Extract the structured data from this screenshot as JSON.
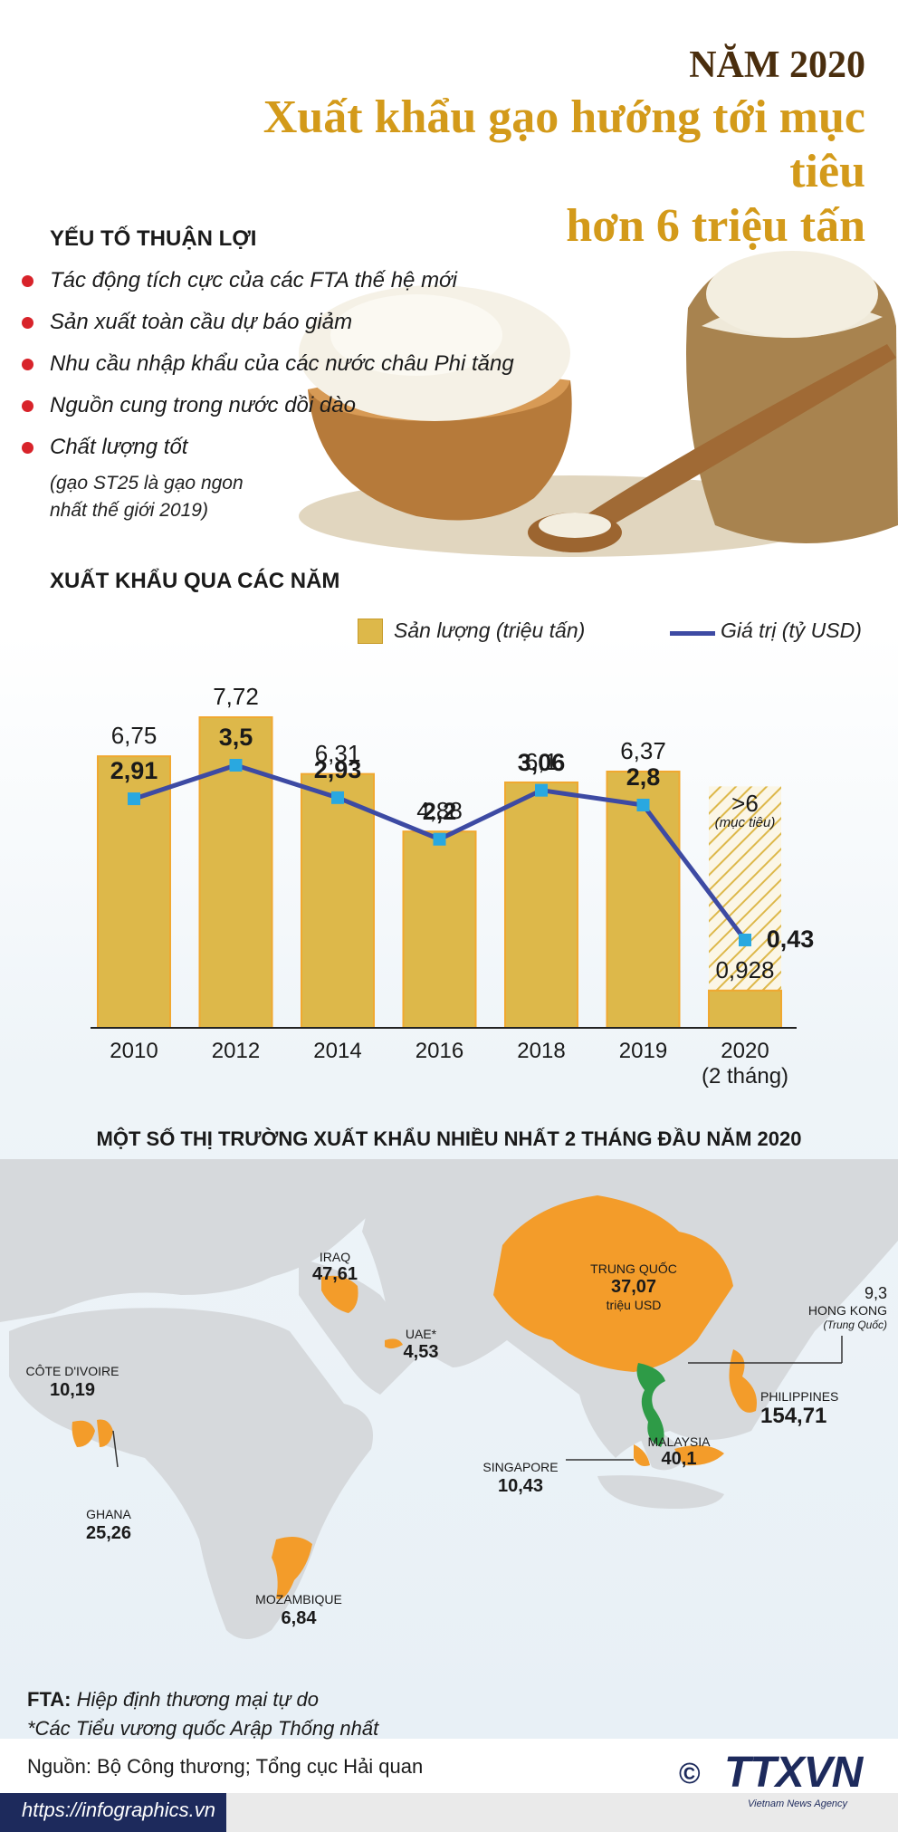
{
  "header": {
    "year": "NĂM 2020",
    "title_line1": "Xuất khẩu gạo hướng tới mục tiêu",
    "title_line2": "hơn 6 triệu tấn"
  },
  "factors": {
    "heading": "YẾU TỐ THUẬN LỢI",
    "items": [
      "Tác động tích cực của các FTA thế hệ mới",
      "Sản xuất toàn cầu dự báo giảm",
      "Nhu cầu nhập khẩu của các nước châu Phi tăng",
      "Nguồn cung trong nước dồi dào",
      "Chất lượng tốt"
    ],
    "note_line1": "(gạo ST25 là gạo ngon",
    "note_line2": "nhất thế giới 2019)"
  },
  "chart_heading": "XUẤT KHẨU QUA CÁC NĂM",
  "chart_data": {
    "type": "bar",
    "categories": [
      "2010",
      "2012",
      "2014",
      "2016",
      "2018",
      "2019",
      "2020"
    ],
    "last_category_sub": "(2 tháng)",
    "series": [
      {
        "name": "Sản lượng  (triệu tấn)",
        "type": "bar",
        "values": [
          6.75,
          7.72,
          6.31,
          4.88,
          6.1,
          6.37,
          0.928
        ],
        "labels": [
          "6,75",
          "7,72",
          "6,31",
          "4,88",
          "6,1",
          "6,37",
          "0,928"
        ],
        "color": "#ddb84a"
      },
      {
        "name": "Giá trị (tỷ USD)",
        "type": "line",
        "values": [
          2.91,
          3.5,
          2.93,
          2.2,
          3.06,
          2.8,
          0.43
        ],
        "labels": [
          "2,91",
          "3,5",
          "2,93",
          "2,2",
          "3,06",
          "2,8",
          "0,43"
        ],
        "color": "#3d4aa3"
      }
    ],
    "target": {
      "value": 6,
      "label": ">6",
      "sublabel": "(mục tiêu)"
    },
    "ylim": [
      0,
      8
    ],
    "line_ylim": [
      0,
      6
    ]
  },
  "map": {
    "heading": "MỘT SỐ THỊ TRƯỜNG XUẤT KHẨU NHIỀU NHẤT 2 THÁNG ĐẦU NĂM 2020",
    "markets": [
      {
        "name": "IRAQ",
        "value": "47,61"
      },
      {
        "name": "UAE*",
        "value": "4,53"
      },
      {
        "name": "CÔTE D'IVOIRE",
        "value": "10,19"
      },
      {
        "name": "GHANA",
        "value": "25,26"
      },
      {
        "name": "MOZAMBIQUE",
        "value": "6,84"
      },
      {
        "name": "TRUNG QUỐC",
        "value": "37,07",
        "unit": "triệu USD"
      },
      {
        "name": "HONG KONG",
        "value": "9,3",
        "sub": "(Trung Quốc)"
      },
      {
        "name": "PHILIPPINES",
        "value": "154,71"
      },
      {
        "name": "MALAYSIA",
        "value": "40,1"
      },
      {
        "name": "SINGAPORE",
        "value": "10,43"
      }
    ]
  },
  "footer": {
    "fta_bold": "FTA:",
    "fta_text": " Hiệp định thương mại tự do",
    "uae_note": "*Các Tiểu vương quốc Arập Thống nhất",
    "source": "Nguồn: Bộ Công thương; Tổng cục Hải quan",
    "url": "https://infographics.vn",
    "logo": "TTXVN",
    "logo_sub": "Vietnam News Agency",
    "copyright": "©"
  },
  "colors": {
    "gold": "#d39a1a",
    "bar": "#ddb84a",
    "line": "#3d4aa3",
    "market": "#f39c2a",
    "vietnam": "#2e9b47",
    "land": "#d6d9dc"
  }
}
